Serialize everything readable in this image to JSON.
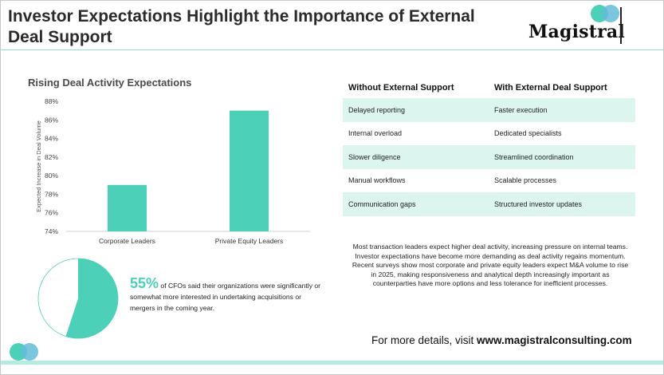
{
  "title": "Investor Expectations Highlight the Importance of External Deal Support",
  "brand": "Magistral",
  "colors": {
    "accent": "#4dd0b8",
    "accent_light": "#dcf5ef",
    "circle_blue": "#64bcd8",
    "header_line": "#8fe0d0"
  },
  "chart_data": {
    "type": "bar",
    "title": "Rising Deal Activity Expectations",
    "categories": [
      "Corporate Leaders",
      "Private Equity Leaders"
    ],
    "values": [
      79,
      87
    ],
    "ylabel": "Expected Increase in Deal Volume",
    "xlabel": "",
    "ylim": [
      74,
      88
    ],
    "yticks": [
      "74%",
      "76%",
      "78%",
      "80%",
      "82%",
      "84%",
      "86%",
      "88%"
    ],
    "grid": false,
    "color": "#4dd0b8"
  },
  "table": {
    "headers": [
      "Without External Support",
      "With External Deal Support"
    ],
    "rows": [
      [
        "Delayed reporting",
        "Faster execution"
      ],
      [
        "Internal overload",
        "Dedicated specialists"
      ],
      [
        "Slower diligence",
        "Streamlined coordination"
      ],
      [
        "Manual workflows",
        "Scalable processes"
      ],
      [
        "Communication gaps",
        "Structured investor updates"
      ]
    ]
  },
  "paragraph": "Most transaction leaders expect higher deal activity, increasing pressure on internal teams. Investor expectations have become more demanding as deal activity regains momentum. Recent surveys show most corporate and private equity leaders expect M&A volume to rise in 2025, making responsiveness and analytical depth increasingly important as counterparties have more options and less tolerance for inefficient processes.",
  "stat": {
    "percent": "55%",
    "value": 55,
    "text": "of CFOs said their organizations were significantly or somewhat more interested in undertaking acquisitions or mergers in the coming year."
  },
  "footer": {
    "prefix": "For more details, visit ",
    "url": "www.magistralconsulting.com"
  }
}
